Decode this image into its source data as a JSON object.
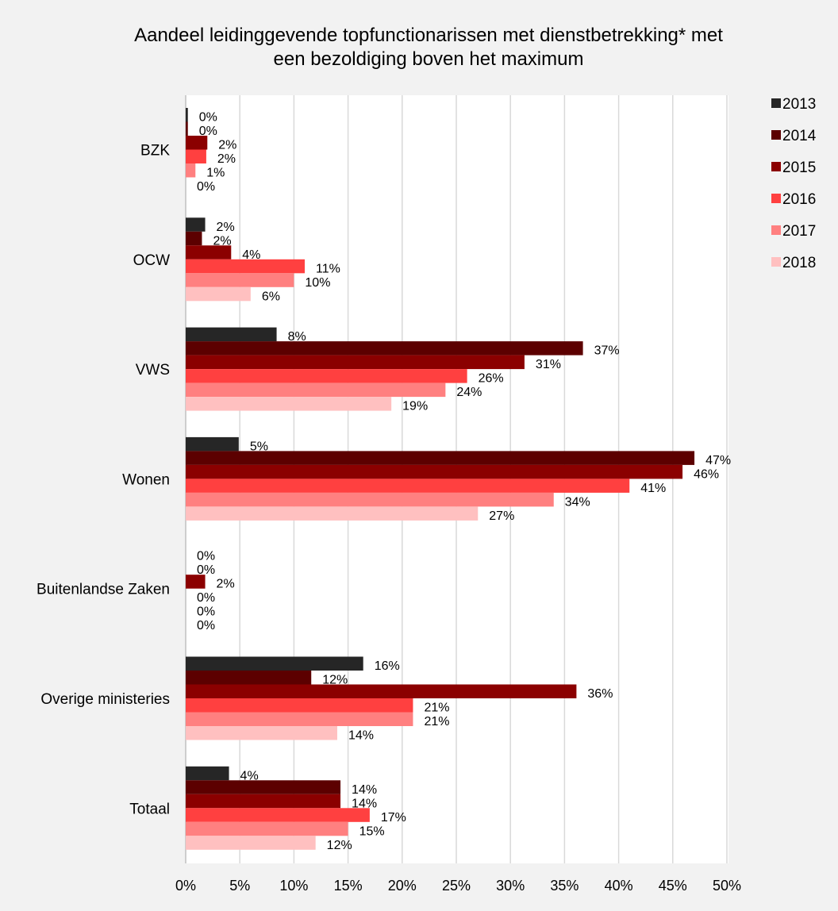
{
  "chart_data": {
    "type": "bar",
    "orientation": "horizontal",
    "title": [
      "Aandeel leidinggevende topfunctionarissen met dienstbetrekking* met",
      "een bezoldiging boven het maximum"
    ],
    "categories": [
      "BZK",
      "OCW",
      "VWS",
      "Wonen",
      "Buitenlandse Zaken",
      "Overige ministeries",
      "Totaal"
    ],
    "series": [
      {
        "name": "2013",
        "color": "#262626",
        "values": [
          0.2,
          1.8,
          8.4,
          4.9,
          0,
          16.4,
          4.0
        ],
        "labels": [
          "0%",
          "2%",
          "8%",
          "5%",
          "0%",
          "16%",
          "4%"
        ]
      },
      {
        "name": "2014",
        "color": "#5c0000",
        "values": [
          0.2,
          1.5,
          36.7,
          47.0,
          0,
          11.6,
          14.3
        ],
        "labels": [
          "0%",
          "2%",
          "37%",
          "47%",
          "0%",
          "12%",
          "14%"
        ]
      },
      {
        "name": "2015",
        "color": "#8b0000",
        "values": [
          2.0,
          4.2,
          31.3,
          45.9,
          1.8,
          36.1,
          14.3
        ],
        "labels": [
          "2%",
          "4%",
          "31%",
          "46%",
          "2%",
          "36%",
          "14%"
        ]
      },
      {
        "name": "2016",
        "color": "#ff4040",
        "values": [
          1.9,
          11.0,
          26.0,
          41.0,
          0,
          21.0,
          17.0
        ],
        "labels": [
          "2%",
          "11%",
          "26%",
          "41%",
          "0%",
          "21%",
          "17%"
        ]
      },
      {
        "name": "2017",
        "color": "#ff8080",
        "values": [
          0.9,
          10.0,
          24.0,
          34.0,
          0,
          21.0,
          15.0
        ],
        "labels": [
          "1%",
          "10%",
          "24%",
          "34%",
          "0%",
          "21%",
          "15%"
        ]
      },
      {
        "name": "2018",
        "color": "#ffc0c0",
        "values": [
          0,
          6.0,
          19.0,
          27.0,
          0,
          14.0,
          12.0
        ],
        "labels": [
          "0%",
          "6%",
          "19%",
          "27%",
          "0%",
          "14%",
          "12%"
        ]
      }
    ],
    "xlim": [
      0,
      50
    ],
    "xticks": [
      "0%",
      "5%",
      "10%",
      "15%",
      "20%",
      "25%",
      "30%",
      "35%",
      "40%",
      "45%",
      "50%"
    ],
    "grid": true,
    "legend_position": "right"
  }
}
